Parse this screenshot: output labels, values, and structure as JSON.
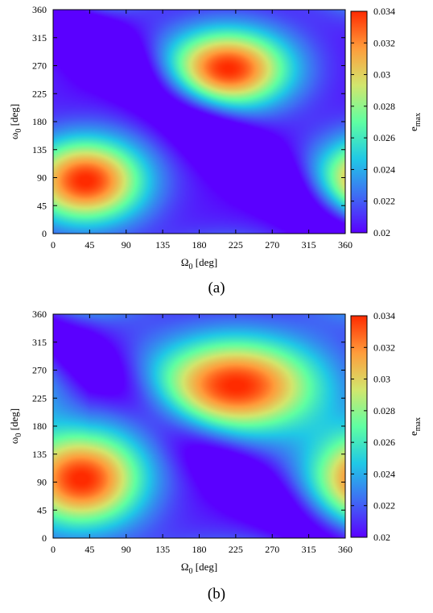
{
  "figure": {
    "caption_a": "(a)",
    "caption_b": "(b)"
  },
  "chart_data": [
    {
      "type": "heatmap",
      "panel": "a",
      "xlabel_symbol": "Ω",
      "xlabel_sub": "0",
      "xlabel_unit": " [deg]",
      "ylabel_symbol": "ω",
      "ylabel_sub": "0",
      "ylabel_unit": " [deg]",
      "xlim": [
        0,
        360
      ],
      "ylim": [
        0,
        360
      ],
      "xticks": [
        0,
        45,
        90,
        135,
        180,
        225,
        270,
        315,
        360
      ],
      "yticks": [
        0,
        45,
        90,
        135,
        180,
        225,
        270,
        315,
        360
      ],
      "colorbar": {
        "label_main": "e",
        "label_sub": "max",
        "range": [
          0.02,
          0.034
        ],
        "ticks": [
          "0.02",
          "0.022",
          "0.024",
          "0.026",
          "0.028",
          "0.03",
          "0.032",
          "0.034"
        ]
      },
      "colormap": [
        "#5a00ff",
        "#3f6cf4",
        "#20c8e6",
        "#5fffa2",
        "#d2e66d",
        "#ff9c3b",
        "#ff2b00"
      ],
      "field": {
        "base": 0.0203,
        "peaks": [
          {
            "x": 40,
            "y": 85,
            "amp": 0.0138,
            "sx": 52,
            "sy": 48
          },
          {
            "x": 215,
            "y": 265,
            "amp": 0.0138,
            "sx": 55,
            "sy": 45
          }
        ],
        "trough_band": {
          "a": 1.0,
          "b": 1.0,
          "c": -360,
          "amp": 0.004,
          "w": 30
        }
      }
    },
    {
      "type": "heatmap",
      "panel": "b",
      "xlabel_symbol": "Ω",
      "xlabel_sub": "0",
      "xlabel_unit": " [deg]",
      "ylabel_symbol": "ω",
      "ylabel_sub": "0",
      "ylabel_unit": " [deg]",
      "xlim": [
        0,
        360
      ],
      "ylim": [
        0,
        360
      ],
      "xticks": [
        0,
        45,
        90,
        135,
        180,
        225,
        270,
        315,
        360
      ],
      "yticks": [
        0,
        45,
        90,
        135,
        180,
        225,
        270,
        315,
        360
      ],
      "colorbar": {
        "label_main": "e",
        "label_sub": "max",
        "range": [
          0.02,
          0.034
        ],
        "ticks": [
          "0.02",
          "0.022",
          "0.024",
          "0.026",
          "0.028",
          "0.03",
          "0.032",
          "0.034"
        ]
      },
      "colormap": [
        "#5a00ff",
        "#3f6cf4",
        "#20c8e6",
        "#5fffa2",
        "#d2e66d",
        "#ff9c3b",
        "#ff2b00"
      ],
      "field": {
        "base": 0.0203,
        "peaks": [
          {
            "x": 35,
            "y": 95,
            "amp": 0.0138,
            "sx": 55,
            "sy": 55
          },
          {
            "x": 225,
            "y": 245,
            "amp": 0.0138,
            "sx": 75,
            "sy": 55
          }
        ],
        "trough_band": {
          "a": 1.0,
          "b": 1.0,
          "c": -330,
          "amp": 0.003,
          "w": 30
        }
      }
    }
  ]
}
